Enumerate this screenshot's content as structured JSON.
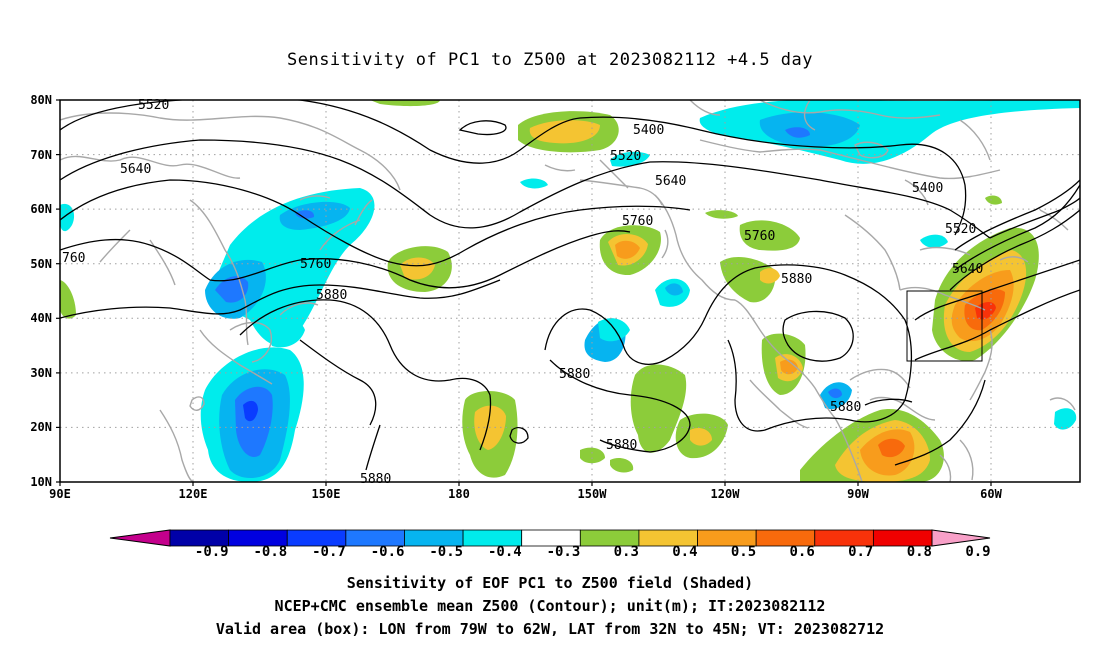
{
  "title": "Sensitivity of PC1 to Z500 at 2023082112 +4.5 day",
  "map": {
    "lat_labels": [
      "80N",
      "70N",
      "60N",
      "50N",
      "40N",
      "30N",
      "20N",
      "10N"
    ],
    "lon_labels": [
      "90E",
      "120E",
      "150E",
      "180",
      "150W",
      "120W",
      "90W",
      "60W"
    ],
    "contour_labels": [
      "5520",
      "5400",
      "5520",
      "5640",
      "5640",
      "5760",
      "760",
      "5760",
      "5880",
      "5760",
      "5880",
      "5880",
      "5880",
      "5880",
      "5880",
      "5400",
      "5520",
      "5640"
    ],
    "valid_box": {
      "lon_from": "79W",
      "lon_to": "62W",
      "lat_from": "32N",
      "lat_to": "45N"
    }
  },
  "colorbar": {
    "labels": [
      "-0.9",
      "-0.8",
      "-0.7",
      "-0.6",
      "-0.5",
      "-0.4",
      "-0.3",
      "0.3",
      "0.4",
      "0.5",
      "0.6",
      "0.7",
      "0.8",
      "0.9"
    ],
    "colors": [
      "#c4008c",
      "#0000a8",
      "#0000e0",
      "#0a3cff",
      "#1e78ff",
      "#06b4f0",
      "#00ecec",
      "#ffffff",
      "#8ccc3a",
      "#f4c432",
      "#f89c1c",
      "#f86a0c",
      "#f8320a",
      "#f00000",
      "#f8a0c8"
    ]
  },
  "captions": {
    "line1": "Sensitivity of EOF PC1 to Z500 field (Shaded)",
    "line2": "NCEP+CMC ensemble mean Z500 (Contour); unit(m); IT:2023082112",
    "line3": "Valid area (box): LON from 79W to 62W, LAT from 32N to 45N; VT: 2023082712"
  },
  "colors": {
    "coast": "#a8a8a8",
    "grid": "#a0a0a0",
    "contour": "#000000"
  }
}
